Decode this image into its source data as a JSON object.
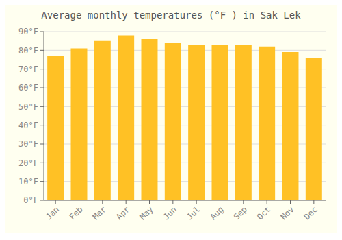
{
  "chart_data": {
    "type": "bar",
    "title": "Average monthly temperatures (°F ) in Sak Lek",
    "categories": [
      "Jan",
      "Feb",
      "Mar",
      "Apr",
      "May",
      "Jun",
      "Jul",
      "Aug",
      "Sep",
      "Oct",
      "Nov",
      "Dec"
    ],
    "values": [
      77,
      81,
      85,
      88,
      86,
      84,
      83,
      83,
      83,
      82,
      79,
      76
    ],
    "color": "#FFC125",
    "ylim": [
      0,
      90
    ],
    "yticks": [
      {
        "value": 0,
        "label": "0°F"
      },
      {
        "value": 10,
        "label": "10°F"
      },
      {
        "value": 20,
        "label": "20°F"
      },
      {
        "value": 30,
        "label": "30°F"
      },
      {
        "value": 40,
        "label": "40°F"
      },
      {
        "value": 50,
        "label": "50°F"
      },
      {
        "value": 60,
        "label": "60°F"
      },
      {
        "value": 70,
        "label": "70°F"
      },
      {
        "value": 80,
        "label": "80°F"
      },
      {
        "value": 90,
        "label": "90°F"
      }
    ],
    "grid": true
  }
}
